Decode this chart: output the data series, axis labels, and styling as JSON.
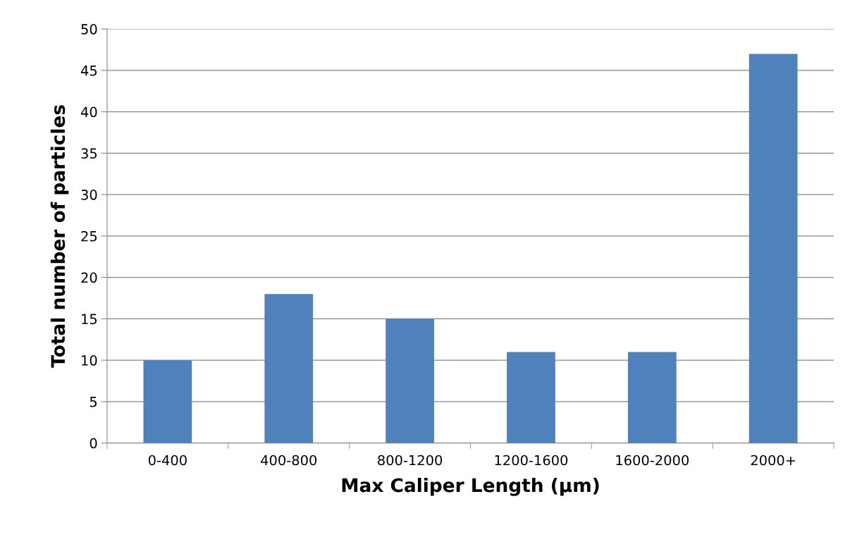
{
  "chart_data": {
    "type": "bar",
    "categories": [
      "0-400",
      "400-800",
      "800-1200",
      "1200-1600",
      "1600-2000",
      "2000+"
    ],
    "values": [
      10,
      18,
      15,
      11,
      11,
      47
    ],
    "color": "#4f81bd",
    "xlabel": "Max Caliper Length (µm)",
    "ylabel": "Total number of particles",
    "ylim": [
      0,
      50
    ],
    "yticks": [
      0,
      5,
      10,
      15,
      20,
      25,
      30,
      35,
      40,
      45,
      50
    ],
    "grid": "y",
    "legend": false
  }
}
